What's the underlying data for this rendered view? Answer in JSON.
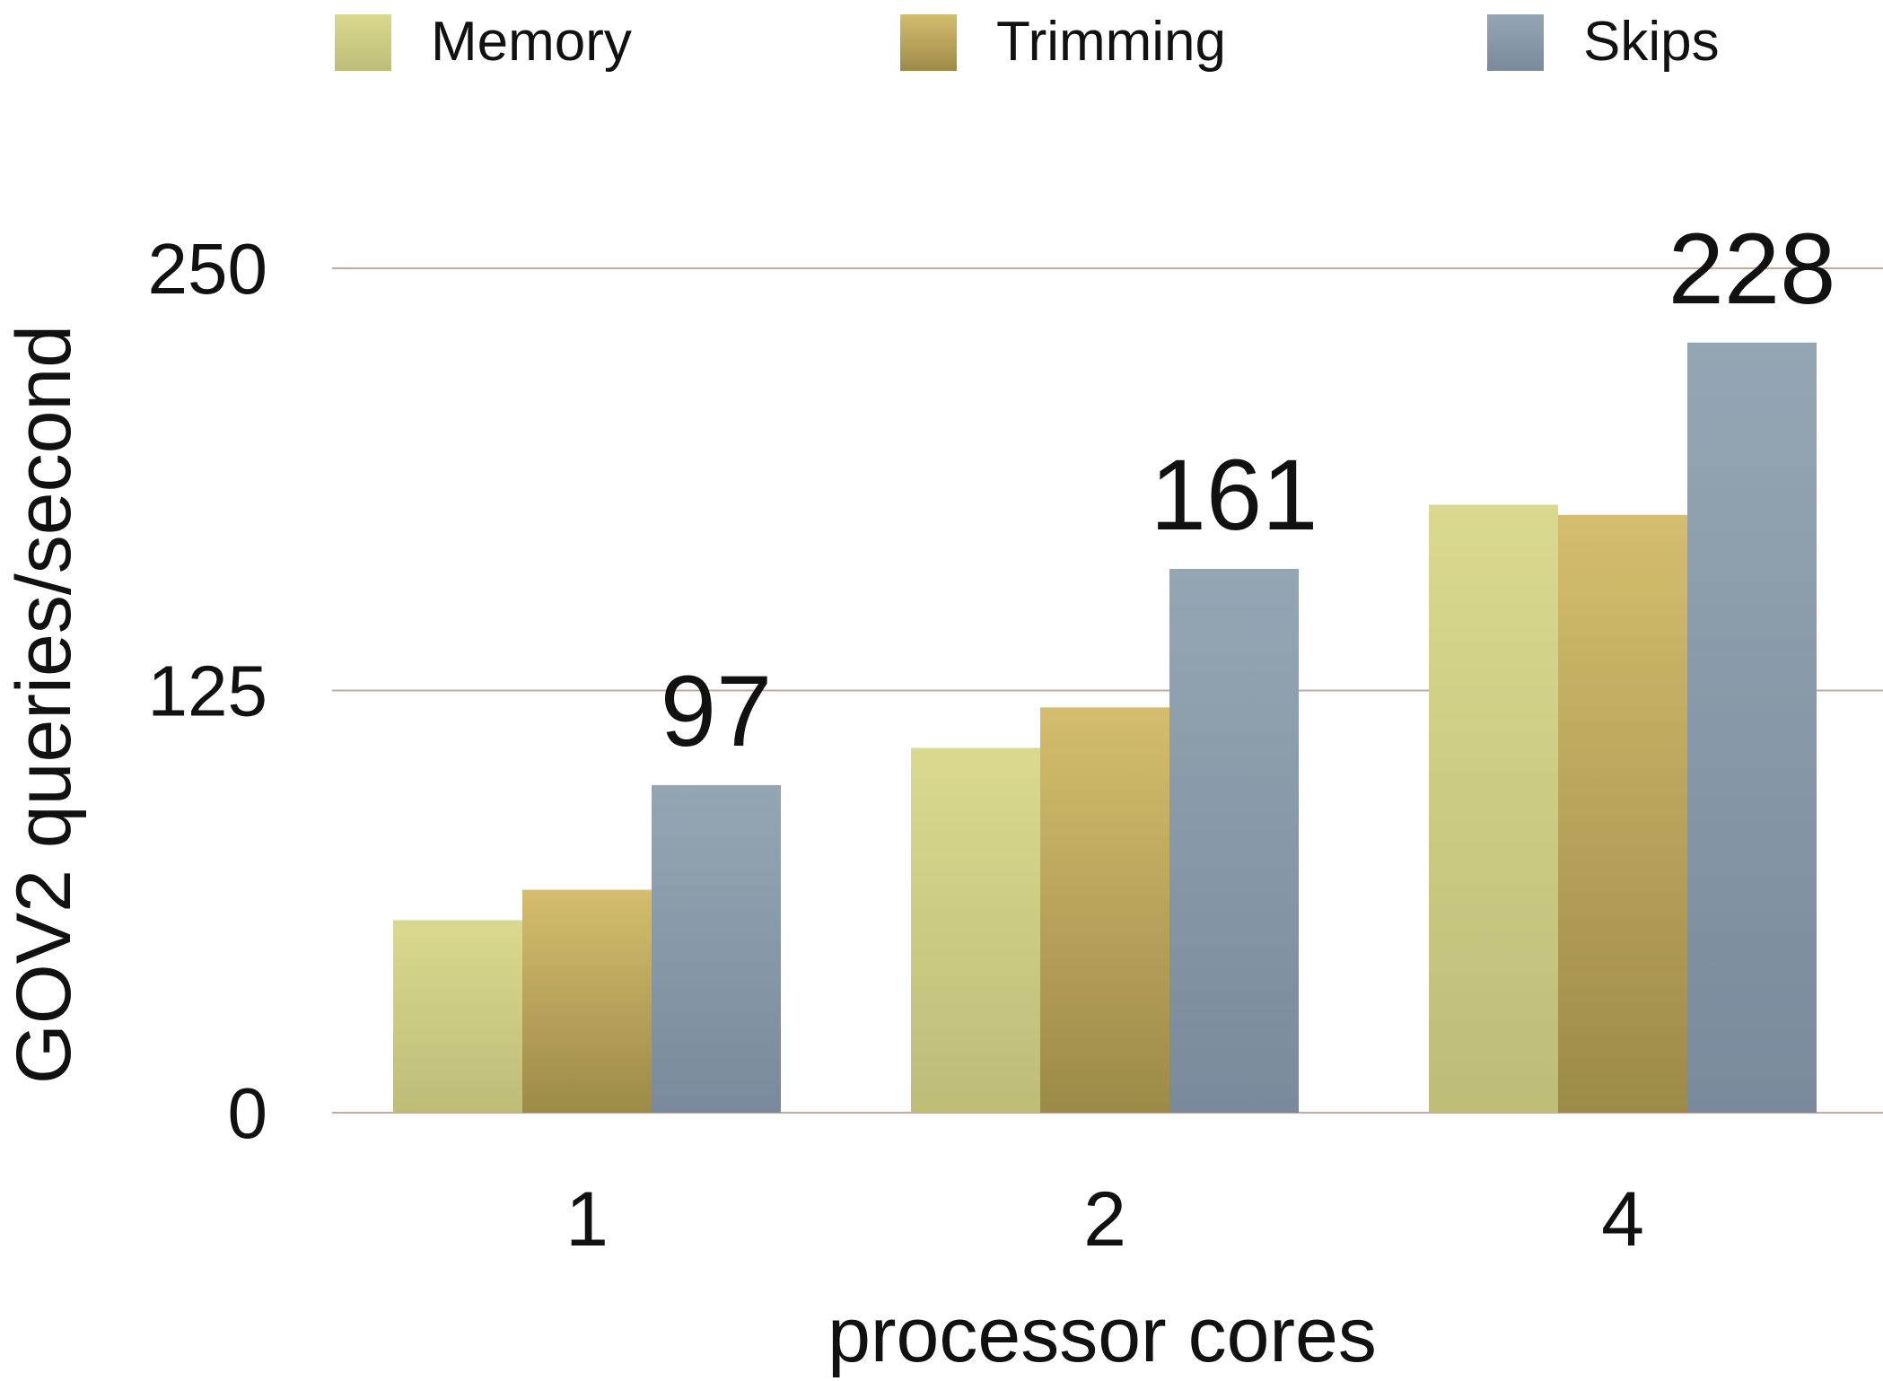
{
  "chart_data": {
    "type": "bar",
    "xlabel": "processor cores",
    "ylabel": "GOV2 queries/second",
    "categories": [
      "1",
      "2",
      "4"
    ],
    "ylim": [
      0,
      250
    ],
    "yticks": [
      0,
      125,
      250
    ],
    "grid": true,
    "legend_position": "top",
    "series": [
      {
        "name": "Memory",
        "values": [
          57,
          108,
          180
        ],
        "color_top": "#dad98f",
        "color_bottom": "#bdbd78"
      },
      {
        "name": "Trimming",
        "values": [
          66,
          120,
          177
        ],
        "color_top": "#d4bd6e",
        "color_bottom": "#9c8a48"
      },
      {
        "name": "Skips",
        "values": [
          97,
          161,
          228
        ],
        "color_top": "#95a6b3",
        "color_bottom": "#7a8a9c"
      }
    ],
    "data_labels": [
      {
        "series": "Skips",
        "category": "1",
        "text": "97"
      },
      {
        "series": "Skips",
        "category": "2",
        "text": "161"
      },
      {
        "series": "Skips",
        "category": "4",
        "text": "228"
      }
    ],
    "gridline_color": "#c6a9a0"
  }
}
